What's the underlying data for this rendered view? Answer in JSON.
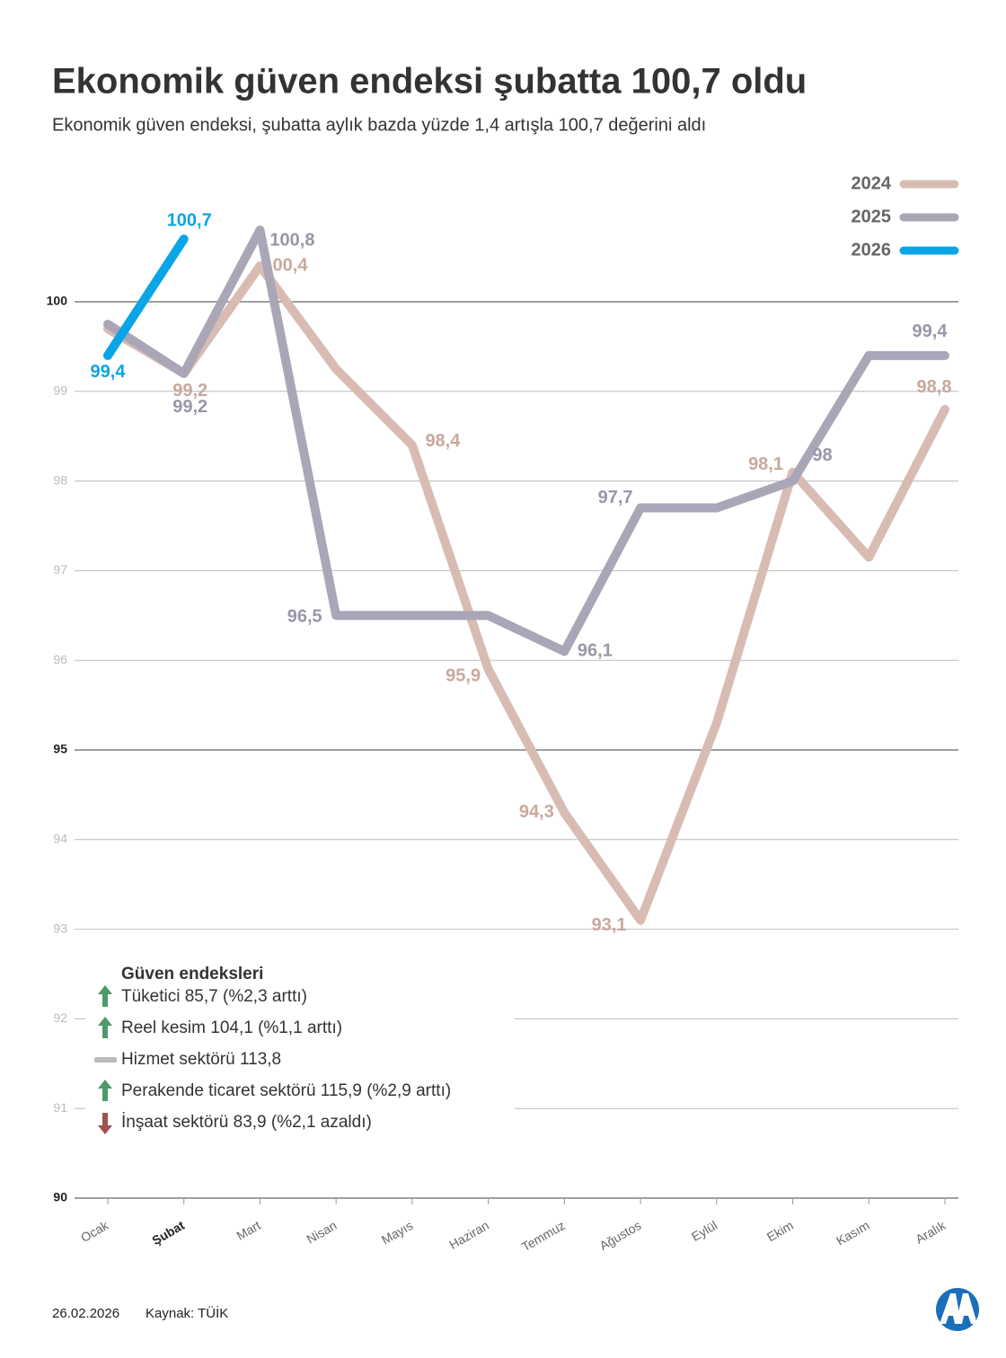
{
  "chart_data": {
    "type": "line",
    "title": "Ekonomik güven endeksi şubatta 100,7 oldu",
    "subtitle": "Ekonomik güven endeksi, şubatta aylık bazda yüzde 1,4 artışla 100,7 değerini aldı",
    "categories": [
      "Ocak",
      "Şubat",
      "Mart",
      "Nisan",
      "Mayıs",
      "Haziran",
      "Temmuz",
      "Ağustos",
      "Eylül",
      "Ekim",
      "Kasım",
      "Aralık"
    ],
    "highlight_category": "Şubat",
    "series": [
      {
        "name": "2024",
        "color": "#d8bcb3",
        "label_color": "#c9a89d",
        "values": [
          99.7,
          99.2,
          100.4,
          99.25,
          98.4,
          95.9,
          94.3,
          93.1,
          95.3,
          98.1,
          97.15,
          98.8
        ],
        "value_labels": [
          null,
          "99,2",
          "100,4",
          null,
          "98,4",
          "95,9",
          "94,3",
          "93,1",
          null,
          "98,1",
          null,
          "98,8"
        ]
      },
      {
        "name": "2025",
        "color": "#aba6b7",
        "label_color": "#9a96a8",
        "values": [
          99.75,
          99.2,
          100.8,
          96.5,
          96.5,
          96.5,
          96.1,
          97.7,
          97.7,
          98,
          99.4,
          99.4
        ],
        "value_labels": [
          null,
          "99,2",
          "100,8",
          "96,5",
          null,
          null,
          "96,1",
          "97,7",
          null,
          "98",
          null,
          "99,4"
        ]
      },
      {
        "name": "2026",
        "color": "#0aa5e6",
        "label_color": "#0aa5e6",
        "values": [
          99.4,
          100.7,
          null,
          null,
          null,
          null,
          null,
          null,
          null,
          null,
          null,
          null
        ],
        "value_labels": [
          "99,4",
          "100,7",
          null,
          null,
          null,
          null,
          null,
          null,
          null,
          null,
          null,
          null
        ]
      }
    ],
    "ylim": [
      90,
      101.5
    ],
    "yticks": [
      90,
      91,
      92,
      93,
      94,
      95,
      96,
      97,
      98,
      99,
      100
    ],
    "major_yticks": [
      90,
      95,
      100
    ],
    "grid": true,
    "legend": "top-right",
    "info": {
      "title": "Güven endeksleri",
      "items": [
        {
          "text": "Tüketici 85,7 (%2,3 arttı)",
          "trend": "up"
        },
        {
          "text": "Reel kesim 104,1 (%1,1 arttı)",
          "trend": "up"
        },
        {
          "text": "Hizmet sektörü 113,8",
          "trend": "flat"
        },
        {
          "text": "Perakende ticaret sektörü 115,9 (%2,9 arttı)",
          "trend": "up"
        },
        {
          "text": "İnşaat sektörü 83,9 (%2,1 azaldı)",
          "trend": "down"
        }
      ]
    },
    "date": "26.02.2026",
    "source": "Kaynak: TÜİK"
  }
}
